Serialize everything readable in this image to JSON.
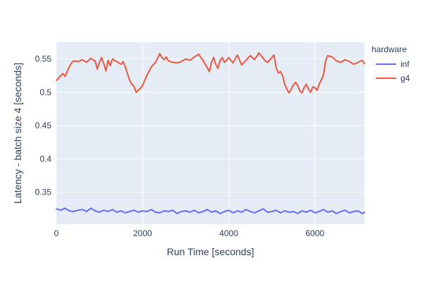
{
  "chart_data": {
    "type": "line",
    "title": "",
    "xlabel": "Run Time [seconds]",
    "ylabel": "Latency - batch size 4 [seconds]",
    "xlim": [
      0,
      7150
    ],
    "ylim": [
      0.302,
      0.575
    ],
    "x_ticks": [
      0,
      2000,
      4000,
      6000
    ],
    "x_tick_labels": [
      "0",
      "2000",
      "4000",
      "6000"
    ],
    "y_ticks": [
      0.35,
      0.4,
      0.45,
      0.5,
      0.55
    ],
    "y_tick_labels": [
      "0.35",
      "0.4",
      "0.45",
      "0.5",
      "0.55"
    ],
    "grid": true,
    "plot_background": "#e5ecf6",
    "grid_color": "#ffffff",
    "legend": {
      "title": "hardware",
      "placement": "right"
    },
    "series": [
      {
        "name": "inf",
        "color": "#636efa",
        "x": [
          0,
          100,
          200,
          300,
          400,
          500,
          600,
          700,
          800,
          900,
          1000,
          1100,
          1200,
          1300,
          1400,
          1500,
          1600,
          1700,
          1800,
          1900,
          2000,
          2100,
          2200,
          2300,
          2400,
          2500,
          2600,
          2700,
          2800,
          2900,
          3000,
          3100,
          3200,
          3300,
          3400,
          3500,
          3600,
          3700,
          3800,
          3900,
          4000,
          4100,
          4200,
          4300,
          4400,
          4500,
          4600,
          4700,
          4800,
          4900,
          5000,
          5100,
          5200,
          5300,
          5400,
          5500,
          5600,
          5700,
          5800,
          5900,
          6000,
          6100,
          6200,
          6300,
          6400,
          6500,
          6600,
          6700,
          6800,
          6900,
          7000,
          7100,
          7150
        ],
        "values": [
          0.325,
          0.323,
          0.326,
          0.322,
          0.321,
          0.323,
          0.324,
          0.321,
          0.326,
          0.322,
          0.32,
          0.323,
          0.321,
          0.324,
          0.32,
          0.322,
          0.319,
          0.321,
          0.323,
          0.32,
          0.322,
          0.321,
          0.324,
          0.32,
          0.319,
          0.322,
          0.321,
          0.323,
          0.318,
          0.321,
          0.322,
          0.32,
          0.323,
          0.319,
          0.321,
          0.324,
          0.32,
          0.322,
          0.318,
          0.321,
          0.323,
          0.319,
          0.322,
          0.32,
          0.324,
          0.321,
          0.319,
          0.322,
          0.325,
          0.32,
          0.321,
          0.323,
          0.319,
          0.322,
          0.32,
          0.321,
          0.318,
          0.322,
          0.32,
          0.323,
          0.319,
          0.321,
          0.324,
          0.32,
          0.322,
          0.318,
          0.321,
          0.323,
          0.319,
          0.321,
          0.322,
          0.318,
          0.32
        ]
      },
      {
        "name": "g4",
        "color": "#ef553b",
        "x": [
          0,
          50,
          100,
          150,
          200,
          250,
          300,
          350,
          400,
          500,
          600,
          700,
          800,
          900,
          950,
          1000,
          1050,
          1100,
          1150,
          1200,
          1250,
          1300,
          1400,
          1500,
          1550,
          1600,
          1650,
          1700,
          1750,
          1800,
          1850,
          1900,
          1950,
          2000,
          2050,
          2100,
          2200,
          2300,
          2400,
          2450,
          2500,
          2550,
          2600,
          2700,
          2800,
          2900,
          3000,
          3100,
          3200,
          3300,
          3400,
          3500,
          3550,
          3600,
          3650,
          3700,
          3750,
          3800,
          3850,
          3900,
          4000,
          4100,
          4200,
          4300,
          4400,
          4500,
          4600,
          4700,
          4800,
          4850,
          4900,
          5000,
          5050,
          5100,
          5150,
          5200,
          5250,
          5300,
          5350,
          5400,
          5450,
          5500,
          5550,
          5600,
          5650,
          5700,
          5750,
          5800,
          5850,
          5900,
          5950,
          6000,
          6050,
          6100,
          6150,
          6200,
          6250,
          6300,
          6400,
          6500,
          6600,
          6700,
          6800,
          6900,
          7000,
          7100,
          7150
        ],
        "values": [
          0.518,
          0.521,
          0.525,
          0.528,
          0.524,
          0.531,
          0.538,
          0.544,
          0.547,
          0.546,
          0.549,
          0.545,
          0.551,
          0.547,
          0.535,
          0.545,
          0.552,
          0.543,
          0.532,
          0.548,
          0.54,
          0.55,
          0.546,
          0.542,
          0.546,
          0.538,
          0.528,
          0.518,
          0.512,
          0.509,
          0.5,
          0.503,
          0.506,
          0.51,
          0.518,
          0.525,
          0.538,
          0.545,
          0.558,
          0.552,
          0.549,
          0.553,
          0.547,
          0.545,
          0.544,
          0.546,
          0.55,
          0.548,
          0.553,
          0.557,
          0.548,
          0.537,
          0.531,
          0.545,
          0.552,
          0.542,
          0.536,
          0.548,
          0.552,
          0.545,
          0.552,
          0.544,
          0.556,
          0.541,
          0.548,
          0.555,
          0.549,
          0.559,
          0.551,
          0.547,
          0.545,
          0.552,
          0.556,
          0.537,
          0.529,
          0.531,
          0.525,
          0.512,
          0.505,
          0.499,
          0.505,
          0.511,
          0.515,
          0.51,
          0.502,
          0.499,
          0.507,
          0.512,
          0.505,
          0.5,
          0.508,
          0.507,
          0.503,
          0.512,
          0.519,
          0.526,
          0.548,
          0.555,
          0.553,
          0.547,
          0.545,
          0.549,
          0.546,
          0.542,
          0.545,
          0.548,
          0.543
        ]
      }
    ]
  }
}
